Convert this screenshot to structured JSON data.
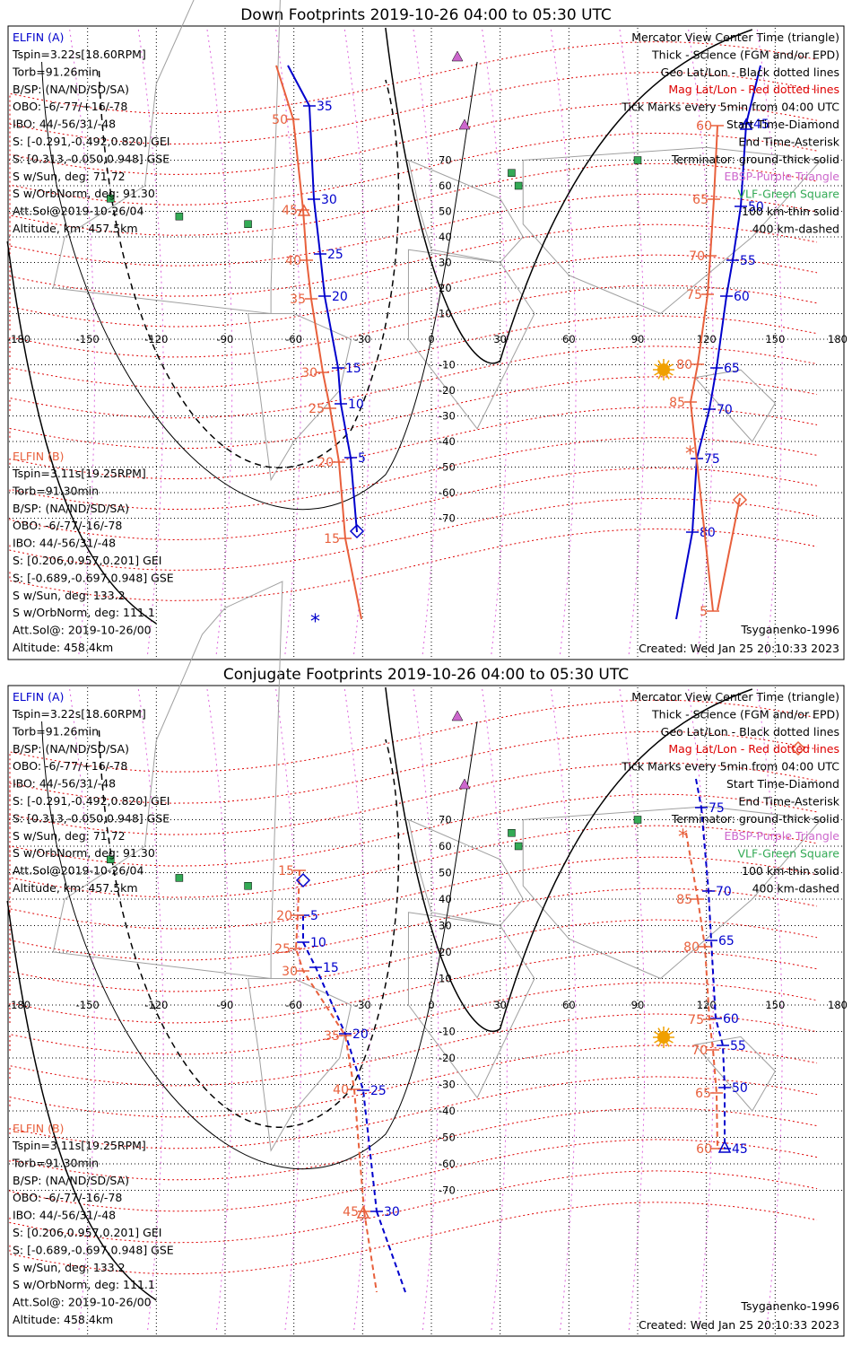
{
  "colors": {
    "elfin_a": "#0000cc",
    "elfin_b": "#e8603c",
    "mag_grid": "#dd0000",
    "geo_grid": "#000000",
    "ebsp": "#cc66cc",
    "vlf": "#33aa55",
    "sun": "#f0a000",
    "coast": "#a0a0a0"
  },
  "panels": [
    {
      "title": "Down Footprints 2019-10-26 04:00 to 05:30 UTC",
      "info_a": {
        "header": "ELFIN (A)",
        "lines": [
          "Tspin=3.22s[18.60RPM]",
          "Torb=91.26min",
          "B/SP: (NA/ND/SD/SA)",
          "OBO: -6/-77/+16/-78",
          "IBO: 44/-56/31/-48",
          "S: [-0.291,-0.492,0.820] GEI",
          "S: [0.313,-0.050,0.948] GSE",
          "S w/Sun, deg: 71.72",
          "S w/OrbNorm, deg: 91.30",
          "Att.Sol@2019-10-26/04",
          "Altitude, km: 457.5km"
        ]
      },
      "info_b": {
        "header": "ELFIN (B)",
        "lines": [
          "Tspin=3.11s[19.25RPM]",
          "Torb=91.30min",
          "B/SP: (NA/ND/SD/SA)",
          "OBO: -6/-77/-16/-78",
          "IBO: 44/-56/31/-48",
          "S: [0.206,0.957,0.201] GEI",
          "S: [-0.689,-0.697,0.948] GSE",
          "S w/Sun, deg: 133.2",
          "S w/OrbNorm, deg: 111.1",
          "Att.Sol@: 2019-10-26/00",
          "Altitude: 458.4km"
        ]
      },
      "legend": [
        {
          "text": "Mercator View Center Time (triangle)",
          "color": "#000000"
        },
        {
          "text": "Thick - Science (FGM and/or EPD)",
          "color": "#000000"
        },
        {
          "text": "Geo Lat/Lon - Black dotted lines",
          "color": "#000000"
        },
        {
          "text": "Mag Lat/Lon - Red dotted lines",
          "color": "#dd0000"
        },
        {
          "text": "Tick Marks every 5min from 04:00 UTC",
          "color": "#000000"
        },
        {
          "text": "Start Time-Diamond",
          "color": "#000000"
        },
        {
          "text": "End Time-Asterisk",
          "color": "#000000"
        },
        {
          "text": "Terminator: ground-thick solid",
          "color": "#000000"
        },
        {
          "text": "EBSP-Purple Triangle",
          "color": "#cc66cc"
        },
        {
          "text": "VLF-Green Square",
          "color": "#33aa55"
        },
        {
          "text": "100 km-thin solid",
          "color": "#000000"
        },
        {
          "text": "400 km-dashed",
          "color": "#000000"
        }
      ],
      "model": "Tsyganenko-1996",
      "created": "Created: Wed Jan 25 20:10:33 2023"
    },
    {
      "title": "Conjugate Footprints 2019-10-26 04:00 to 05:30 UTC",
      "info_a": {
        "header": "ELFIN (A)",
        "lines": [
          "Tspin=3.22s[18.60RPM]",
          "Torb=91.26min",
          "B/SP: (NA/ND/SD/SA)",
          "OBO: -6/-77/+16/-78",
          "IBO: 44/-56/31/-48",
          "S: [-0.291,-0.492,0.820] GEI",
          "S: [0.313,-0.050,0.948] GSE",
          "S w/Sun, deg: 71.72",
          "S w/OrbNorm, deg: 91.30",
          "Att.Sol@2019-10-26/04",
          "Altitude, km: 457.5km"
        ]
      },
      "info_b": {
        "header": "ELFIN (B)",
        "lines": [
          "Tspin=3.11s[19.25RPM]",
          "Torb=91.30min",
          "B/SP: (NA/ND/SD/SA)",
          "OBO: -6/-77/-16/-78",
          "IBO: 44/-56/31/-48",
          "S: [0.206,0.957,0.201] GEI",
          "S: [-0.689,-0.697,0.948] GSE",
          "S w/Sun, deg: 133.2",
          "S w/OrbNorm, deg: 111.1",
          "Att.Sol@: 2019-10-26/00",
          "Altitude: 458.4km"
        ]
      },
      "legend": [
        {
          "text": "Mercator View Center Time (triangle)",
          "color": "#000000"
        },
        {
          "text": "Thick - Science (FGM and/or EPD)",
          "color": "#000000"
        },
        {
          "text": "Geo Lat/Lon - Black dotted lines",
          "color": "#000000"
        },
        {
          "text": "Mag Lat/Lon - Red dotted lines",
          "color": "#dd0000"
        },
        {
          "text": "Tick Marks every 5min from 04:00 UTC",
          "color": "#000000"
        },
        {
          "text": "Start Time-Diamond",
          "color": "#000000"
        },
        {
          "text": "End Time-Asterisk",
          "color": "#000000"
        },
        {
          "text": "Terminator: ground-thick solid",
          "color": "#000000"
        },
        {
          "text": "EBSP-Purple Triangle",
          "color": "#cc66cc"
        },
        {
          "text": "VLF-Green Square",
          "color": "#33aa55"
        },
        {
          "text": "100 km-thin solid",
          "color": "#000000"
        },
        {
          "text": "400 km-dashed",
          "color": "#000000"
        }
      ],
      "model": "Tsyganenko-1996",
      "created": "Created: Wed Jan 25 20:10:33 2023"
    }
  ],
  "lon_ticks": [
    "-180",
    "-150",
    "-120",
    "-90",
    "-60",
    "-30",
    "0",
    "30",
    "60",
    "90",
    "120",
    "150",
    "180"
  ],
  "lat_ticks_down": [
    "70",
    "60",
    "50",
    "40",
    "30",
    "20",
    "10",
    "0",
    "-10",
    "-20",
    "-30",
    "-40",
    "-50",
    "-60",
    "-70"
  ],
  "lat_ticks_conj": [
    "70",
    "60",
    "50",
    "40",
    "30",
    "20",
    "10",
    "0",
    "-10",
    "-20",
    "-30",
    "-40",
    "-50",
    "-60",
    "-70"
  ],
  "tracks": {
    "down": {
      "a_west": [
        [
          "35",
          35
        ],
        [
          "30",
          30
        ],
        [
          "25",
          25
        ],
        [
          "20",
          20
        ],
        [
          "15",
          15
        ],
        [
          "10",
          10
        ],
        [
          "5",
          5
        ]
      ],
      "b_west": [
        [
          "50",
          50
        ],
        [
          "45",
          45
        ],
        [
          "40",
          40
        ],
        [
          "35",
          35
        ],
        [
          "30",
          30
        ],
        [
          "25",
          25
        ],
        [
          "20",
          20
        ],
        [
          "15",
          15
        ]
      ],
      "a_east": [
        [
          "45",
          45
        ],
        [
          "50",
          50
        ],
        [
          "55",
          55
        ],
        [
          "60",
          60
        ],
        [
          "65",
          65
        ],
        [
          "70",
          70
        ],
        [
          "75",
          75
        ],
        [
          "80",
          80
        ]
      ],
      "b_east": [
        [
          "60",
          60
        ],
        [
          "65",
          65
        ],
        [
          "70",
          70
        ],
        [
          "75",
          75
        ],
        [
          "80",
          80
        ],
        [
          "85",
          85
        ],
        [
          "5",
          5
        ]
      ]
    },
    "conj": {
      "a_west": [
        [
          "5",
          5
        ],
        [
          "10",
          10
        ],
        [
          "15",
          15
        ],
        [
          "20",
          20
        ],
        [
          "25",
          25
        ],
        [
          "30",
          30
        ]
      ],
      "b_west": [
        [
          "15",
          15
        ],
        [
          "20",
          20
        ],
        [
          "25",
          25
        ],
        [
          "30",
          30
        ],
        [
          "35",
          35
        ],
        [
          "40",
          40
        ],
        [
          "45",
          45
        ]
      ],
      "a_east": [
        [
          "75",
          75
        ],
        [
          "70",
          70
        ],
        [
          "65",
          65
        ],
        [
          "60",
          60
        ],
        [
          "55",
          55
        ],
        [
          "50",
          50
        ],
        [
          "45",
          45
        ]
      ],
      "b_east": [
        [
          "85",
          85
        ],
        [
          "80",
          80
        ],
        [
          "75",
          75
        ],
        [
          "70",
          70
        ],
        [
          "65",
          65
        ],
        [
          "60",
          60
        ]
      ]
    }
  }
}
